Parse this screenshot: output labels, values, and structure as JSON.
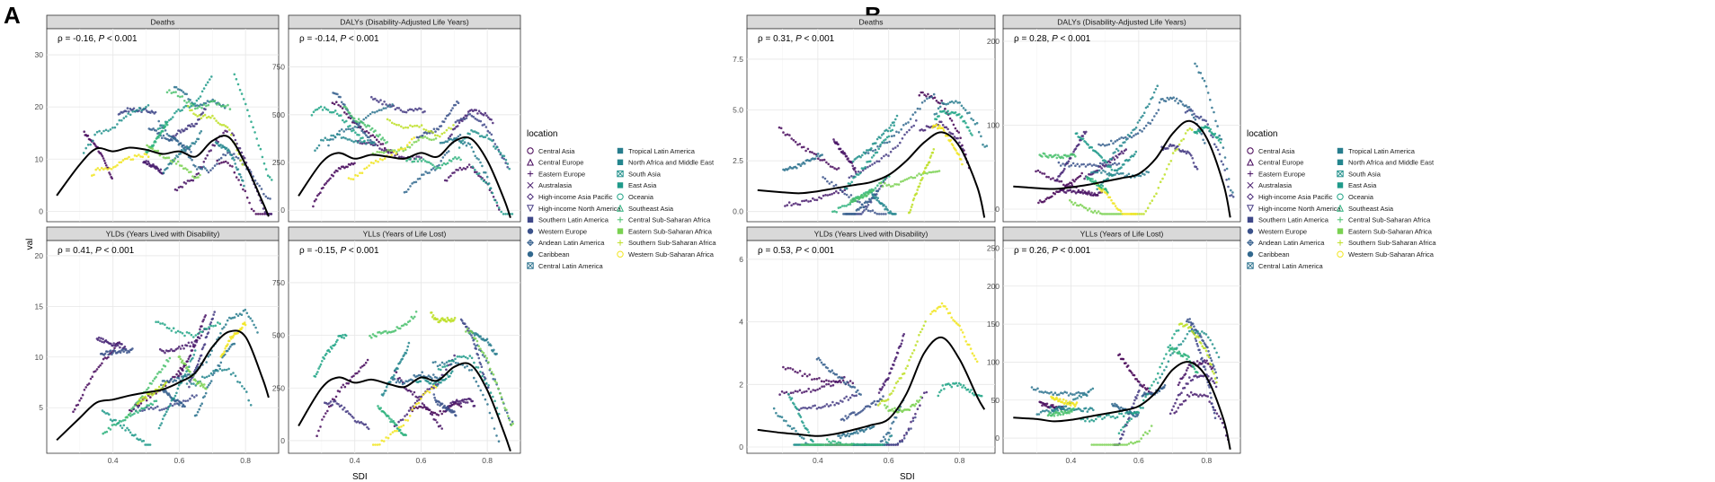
{
  "figure": {
    "panels": [
      "A",
      "B"
    ],
    "axis_titles": {
      "x": "SDI",
      "y": "val"
    }
  },
  "legend": {
    "title": "location",
    "items": [
      {
        "name": "Central Asia",
        "shape": "circle",
        "color": "#440154"
      },
      {
        "name": "Central Europe",
        "shape": "triangle",
        "color": "#46085c"
      },
      {
        "name": "Eastern Europe",
        "shape": "plus",
        "color": "#471164"
      },
      {
        "name": "Australasia",
        "shape": "cross",
        "color": "#481b6d"
      },
      {
        "name": "High-income Asia Pacific",
        "shape": "diamond",
        "color": "#472576"
      },
      {
        "name": "High-income North America",
        "shape": "triangle-down",
        "color": "#443983"
      },
      {
        "name": "Southern Latin America",
        "shape": "square-cross",
        "color": "#3f4889"
      },
      {
        "name": "Western Europe",
        "shape": "star",
        "color": "#3b528b"
      },
      {
        "name": "Andean Latin America",
        "shape": "diamond-plus",
        "color": "#355f8d"
      },
      {
        "name": "Caribbean",
        "shape": "circle-plus",
        "color": "#31688e"
      },
      {
        "name": "Central Latin America",
        "shape": "square-x",
        "color": "#2c728e"
      },
      {
        "name": "Tropical Latin America",
        "shape": "square",
        "color": "#287d8e"
      },
      {
        "name": "North Africa and Middle East",
        "shape": "square",
        "color": "#24868e"
      },
      {
        "name": "South Asia",
        "shape": "square-x",
        "color": "#21918c"
      },
      {
        "name": "East Asia",
        "shape": "square",
        "color": "#1f9a8a"
      },
      {
        "name": "Oceania",
        "shape": "circle",
        "color": "#20a486"
      },
      {
        "name": "Southeast Asia",
        "shape": "triangle",
        "color": "#2db27d"
      },
      {
        "name": "Central Sub-Saharan Africa",
        "shape": "plus",
        "color": "#4ac16d"
      },
      {
        "name": "Eastern Sub-Saharan Africa",
        "shape": "square",
        "color": "#7ad151"
      },
      {
        "name": "Southern Sub-Saharan Africa",
        "shape": "plus",
        "color": "#bddf26"
      },
      {
        "name": "Western Sub-Saharan Africa",
        "shape": "circle",
        "color": "#f1e51d"
      }
    ]
  },
  "chart_data": [
    {
      "type": "scatter",
      "panel": "A",
      "title": "Deaths",
      "annotation_rho": "ρ = -0.16, ",
      "annotation_p": "P < 0.001",
      "xlim": [
        0.2,
        0.9
      ],
      "ylim": [
        -2,
        35
      ],
      "xticks": [
        0.4,
        0.6,
        0.8
      ],
      "yticks": [
        0,
        10,
        20,
        30
      ],
      "ytick_labels": [
        "0",
        "10",
        "20",
        "30"
      ],
      "show_xticks": false,
      "fit": {
        "x": [
          0.23,
          0.3,
          0.35,
          0.4,
          0.45,
          0.5,
          0.55,
          0.6,
          0.65,
          0.7,
          0.75,
          0.8,
          0.85,
          0.87
        ],
        "y": [
          3,
          9,
          12,
          11.5,
          12.2,
          11.8,
          11,
          11.5,
          10.5,
          13.5,
          14.2,
          9,
          2,
          -1
        ]
      }
    },
    {
      "type": "scatter",
      "panel": "A",
      "title": "DALYs (Disability-Adjusted Life Years)",
      "annotation_rho": "ρ = -0.14, ",
      "annotation_p": "P < 0.001",
      "xlim": [
        0.2,
        0.9
      ],
      "ylim": [
        -60,
        950
      ],
      "xticks": [
        0.4,
        0.6,
        0.8
      ],
      "yticks": [
        0,
        250,
        500,
        750
      ],
      "ytick_labels": [
        "0",
        "250",
        "500",
        "750"
      ],
      "show_xticks": false,
      "fit": {
        "x": [
          0.23,
          0.3,
          0.35,
          0.4,
          0.45,
          0.5,
          0.55,
          0.6,
          0.65,
          0.7,
          0.75,
          0.8,
          0.85,
          0.87
        ],
        "y": [
          75,
          250,
          300,
          270,
          290,
          280,
          270,
          300,
          280,
          360,
          375,
          260,
          60,
          -40
        ]
      }
    },
    {
      "type": "scatter",
      "panel": "A",
      "title": "YLDs (Years Lived with Disability)",
      "annotation_rho": "ρ = 0.41, ",
      "annotation_p": "P < 0.001",
      "xlim": [
        0.2,
        0.9
      ],
      "ylim": [
        0.5,
        21.5
      ],
      "xticks": [
        0.4,
        0.6,
        0.8
      ],
      "yticks": [
        5,
        10,
        15,
        20
      ],
      "ytick_labels": [
        "5",
        "10",
        "15",
        "20"
      ],
      "show_xticks": true,
      "fit": {
        "x": [
          0.23,
          0.3,
          0.35,
          0.4,
          0.45,
          0.5,
          0.55,
          0.6,
          0.65,
          0.7,
          0.75,
          0.8,
          0.85,
          0.87
        ],
        "y": [
          1.8,
          4,
          5.5,
          5.8,
          6.2,
          6.5,
          6.8,
          7.5,
          8.5,
          11,
          12.5,
          12,
          8,
          6
        ]
      }
    },
    {
      "type": "scatter",
      "panel": "A",
      "title": "YLLs (Years of Life Lost)",
      "annotation_rho": "ρ = -0.15, ",
      "annotation_p": "P < 0.001",
      "xlim": [
        0.2,
        0.9
      ],
      "ylim": [
        -60,
        950
      ],
      "xticks": [
        0.4,
        0.6,
        0.8
      ],
      "yticks": [
        0,
        250,
        500,
        750
      ],
      "ytick_labels": [
        "0",
        "250",
        "500",
        "750"
      ],
      "show_xticks": true,
      "fit": {
        "x": [
          0.23,
          0.3,
          0.35,
          0.4,
          0.45,
          0.5,
          0.55,
          0.6,
          0.65,
          0.7,
          0.75,
          0.8,
          0.85,
          0.87
        ],
        "y": [
          70,
          250,
          300,
          275,
          290,
          270,
          255,
          300,
          285,
          350,
          360,
          240,
          40,
          -50
        ]
      }
    },
    {
      "type": "scatter",
      "panel": "B",
      "title": "Deaths",
      "annotation_rho": "ρ = 0.31, ",
      "annotation_p": "P < 0.001",
      "xlim": [
        0.2,
        0.9
      ],
      "ylim": [
        -0.5,
        9
      ],
      "xticks": [
        0.4,
        0.6,
        0.8
      ],
      "yticks": [
        0,
        2.5,
        5,
        7.5
      ],
      "ytick_labels": [
        "0.0",
        "2.5",
        "5.0",
        "7.5"
      ],
      "show_xticks": false,
      "fit": {
        "x": [
          0.23,
          0.3,
          0.35,
          0.4,
          0.45,
          0.5,
          0.55,
          0.6,
          0.65,
          0.7,
          0.75,
          0.8,
          0.85,
          0.87
        ],
        "y": [
          1.05,
          0.95,
          0.9,
          1.0,
          1.15,
          1.3,
          1.45,
          1.8,
          2.5,
          3.4,
          3.9,
          3.2,
          1.2,
          -0.3
        ]
      }
    },
    {
      "type": "scatter",
      "panel": "B",
      "title": "DALYs (Disability-Adjusted Life Years)",
      "annotation_rho": "ρ = 0.28, ",
      "annotation_p": "P < 0.001",
      "xlim": [
        0.2,
        0.9
      ],
      "ylim": [
        -15,
        215
      ],
      "xticks": [
        0.4,
        0.6,
        0.8
      ],
      "yticks": [
        0,
        100,
        200
      ],
      "ytick_labels": [
        "0",
        "100",
        "200"
      ],
      "show_xticks": false,
      "fit": {
        "x": [
          0.23,
          0.3,
          0.35,
          0.4,
          0.45,
          0.5,
          0.55,
          0.6,
          0.65,
          0.7,
          0.75,
          0.8,
          0.85,
          0.87
        ],
        "y": [
          27,
          25,
          24,
          26,
          29,
          33,
          37,
          42,
          60,
          90,
          105,
          85,
          30,
          -10
        ]
      }
    },
    {
      "type": "scatter",
      "panel": "B",
      "title": "YLDs (Years Lived with Disability)",
      "annotation_rho": "ρ = 0.53, ",
      "annotation_p": "P < 0.001",
      "xlim": [
        0.2,
        0.9
      ],
      "ylim": [
        -0.2,
        6.6
      ],
      "xticks": [
        0.4,
        0.6,
        0.8
      ],
      "yticks": [
        0,
        2,
        4,
        6
      ],
      "ytick_labels": [
        "0",
        "2",
        "4",
        "6"
      ],
      "show_xticks": true,
      "fit": {
        "x": [
          0.23,
          0.3,
          0.35,
          0.4,
          0.45,
          0.5,
          0.55,
          0.6,
          0.65,
          0.7,
          0.75,
          0.8,
          0.85,
          0.87
        ],
        "y": [
          0.55,
          0.45,
          0.4,
          0.35,
          0.42,
          0.55,
          0.7,
          0.9,
          1.7,
          3.0,
          3.5,
          2.8,
          1.6,
          1.2
        ]
      }
    },
    {
      "type": "scatter",
      "panel": "B",
      "title": "YLLs (Years of Life Lost)",
      "annotation_rho": "ρ = 0.26, ",
      "annotation_p": "P < 0.001",
      "xlim": [
        0.2,
        0.9
      ],
      "ylim": [
        -20,
        260
      ],
      "xticks": [
        0.4,
        0.6,
        0.8
      ],
      "yticks": [
        0,
        50,
        100,
        150,
        200,
        250
      ],
      "ytick_labels": [
        "0",
        "50",
        "100",
        "150",
        "200",
        "250"
      ],
      "show_xticks": true,
      "fit": {
        "x": [
          0.23,
          0.3,
          0.35,
          0.4,
          0.45,
          0.5,
          0.55,
          0.6,
          0.65,
          0.7,
          0.75,
          0.8,
          0.85,
          0.87
        ],
        "y": [
          27,
          25,
          22,
          24,
          28,
          32,
          36,
          42,
          60,
          90,
          100,
          80,
          25,
          -15
        ]
      }
    }
  ]
}
